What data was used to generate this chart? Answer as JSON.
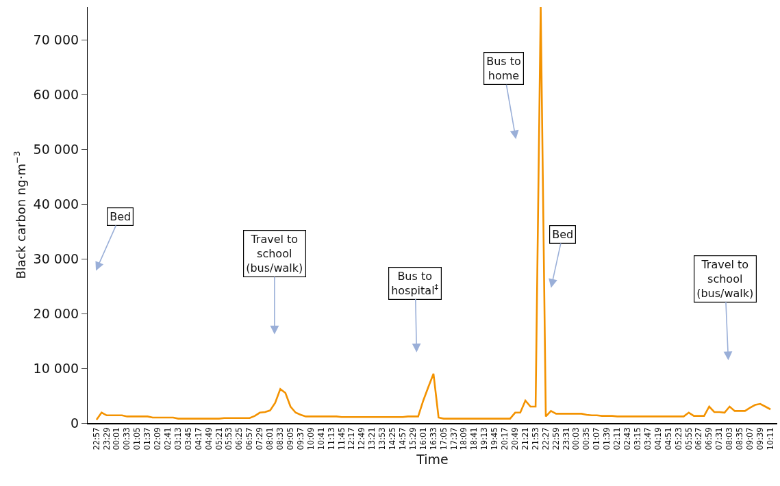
{
  "chart_data": {
    "type": "line",
    "xlabel": "Time",
    "ylabel": "Black carbon ng·m$^{−3}$",
    "categories": [
      "22:57",
      null,
      "23:29",
      null,
      "00:01",
      null,
      "00:33",
      null,
      "01:05",
      null,
      "01:37",
      null,
      "02:09",
      null,
      "02:41",
      null,
      "03:13",
      null,
      "03:45",
      null,
      "04:17",
      null,
      "04:49",
      null,
      "05:21",
      null,
      "05:53",
      null,
      "06:25",
      null,
      "06:57",
      null,
      "07:29",
      null,
      "08:01",
      null,
      "08:33",
      null,
      "09:05",
      null,
      "09:37",
      null,
      "10:09",
      null,
      "10:41",
      null,
      "11:13",
      null,
      "11:45",
      null,
      "12:17",
      null,
      "12:49",
      null,
      "13:21",
      null,
      "13:53",
      null,
      "14:25",
      null,
      "14:57",
      null,
      "15:29",
      null,
      "16:01",
      null,
      "16:33",
      null,
      "17:05",
      null,
      "17:37",
      null,
      "18:09",
      null,
      "18:41",
      null,
      "19:13",
      null,
      "19:45",
      null,
      "20:17",
      null,
      "20:49",
      null,
      "21:21",
      null,
      "21:53",
      null,
      "22:27",
      null,
      "22:59",
      null,
      "23:31",
      null,
      "00:03",
      null,
      "00:35",
      null,
      "01:07",
      null,
      "01:39",
      null,
      "02:11",
      null,
      "02:43",
      null,
      "03:15",
      null,
      "03:47",
      null,
      "04:19",
      null,
      "04:51",
      null,
      "05:23",
      null,
      "05:55",
      null,
      "06:27",
      null,
      "06:59",
      null,
      "07:31",
      null,
      "08:03",
      null,
      "08:35",
      null,
      "09:07",
      null,
      "09:39",
      null,
      "10:11"
    ],
    "series": [
      {
        "color": "#f39200",
        "values": [
          600,
          1900,
          1400,
          1400,
          1400,
          1400,
          1200,
          1200,
          1200,
          1200,
          1200,
          1000,
          1000,
          1000,
          1000,
          1000,
          800,
          800,
          800,
          800,
          800,
          800,
          800,
          800,
          800,
          900,
          900,
          900,
          900,
          900,
          900,
          1300,
          1900,
          2000,
          2300,
          3700,
          6200,
          5500,
          3000,
          1900,
          1500,
          1200,
          1200,
          1200,
          1200,
          1200,
          1200,
          1200,
          1100,
          1100,
          1100,
          1100,
          1100,
          1100,
          1100,
          1100,
          1100,
          1100,
          1100,
          1100,
          1100,
          1200,
          1200,
          1200,
          4100,
          6600,
          9000,
          1000,
          800,
          800,
          800,
          800,
          800,
          800,
          800,
          800,
          800,
          800,
          800,
          800,
          800,
          800,
          1900,
          1900,
          4100,
          3000,
          3000,
          76000,
          1200,
          2200,
          1700,
          1700,
          1700,
          1700,
          1700,
          1700,
          1500,
          1400,
          1400,
          1300,
          1300,
          1300,
          1200,
          1200,
          1200,
          1200,
          1200,
          1200,
          1200,
          1200,
          1200,
          1200,
          1200,
          1200,
          1200,
          1200,
          1900,
          1300,
          1300,
          1300,
          3000,
          2000,
          2000,
          1900,
          3000,
          2200,
          2200,
          2200,
          2800,
          3300,
          3500,
          3000,
          2500
        ]
      }
    ],
    "ylim": [
      0,
      76000
    ],
    "yticks": [
      0,
      {
        "value": 10000,
        "label": "10 000"
      },
      {
        "value": 20000,
        "label": "20 000"
      },
      {
        "value": 30000,
        "label": "30 000"
      },
      {
        "value": 40000,
        "label": "40 000"
      },
      {
        "value": 50000,
        "label": "50 000"
      },
      {
        "value": 60000,
        "label": "60 000"
      },
      {
        "value": 70000,
        "label": "70 000"
      }
    ],
    "annotations": [
      "Bed",
      "Travel to\nschool\n(bus/walk)",
      "Bus to\nhospital$^{‡}$",
      "Bus to\nhome",
      "Bed",
      "Travel to\nschool\n(bus/walk)"
    ],
    "marker": "none",
    "line_style": "solid"
  }
}
